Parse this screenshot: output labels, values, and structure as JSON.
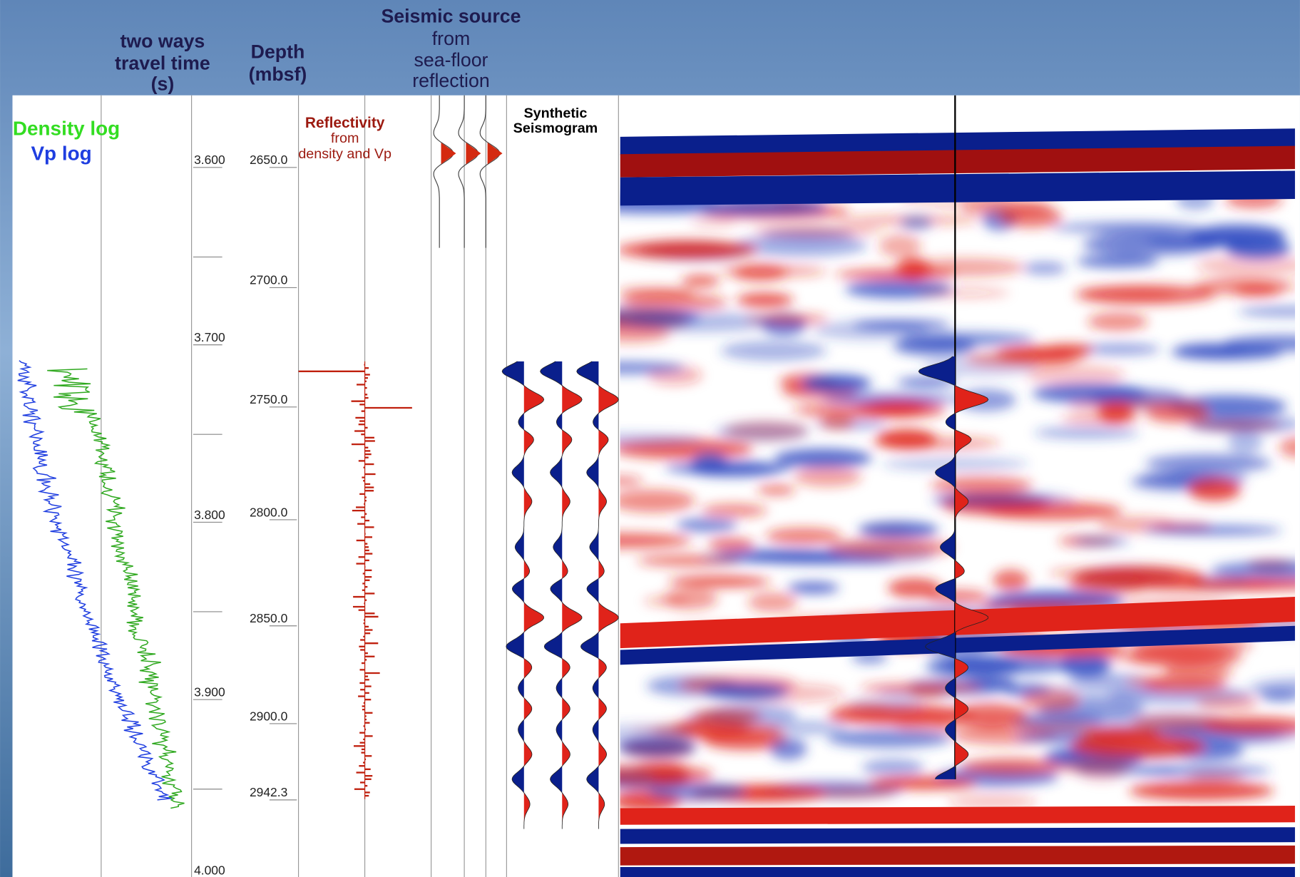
{
  "headers": {
    "twtt": [
      "two ways",
      "travel time",
      "(s)"
    ],
    "depth": [
      "Depth",
      "(mbsf)"
    ],
    "source": [
      "Seismic source",
      "from",
      "sea-floor",
      "reflection"
    ],
    "logs": [
      "Density log",
      "Vp log"
    ],
    "reflectivity": [
      "Reflectivity",
      "from",
      "density and Vp"
    ],
    "synthetic": [
      "Synthetic",
      "Seismogram"
    ]
  },
  "twtt_labels": [
    "3.600",
    "3.700",
    "3.800",
    "3.900",
    "4.000"
  ],
  "depth_labels": [
    "2650.0",
    "2700.0",
    "2750.0",
    "2800.0",
    "2850.0",
    "2900.0",
    "2942.3"
  ]
}
